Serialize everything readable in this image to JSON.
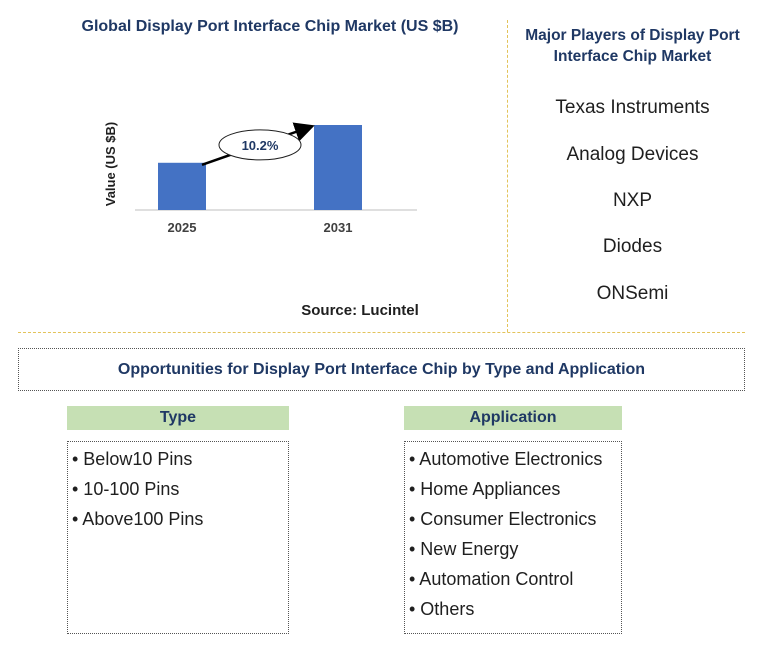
{
  "chart_title": "Global Display Port Interface Chip Market (US $B)",
  "chart_data": {
    "type": "bar",
    "categories": [
      "2025",
      "2031"
    ],
    "values": [
      1.0,
      1.8
    ],
    "ylabel": "Value (US $B)",
    "xlabel": "",
    "annotation": "10.2%",
    "bar_color": "#4472c4"
  },
  "source": "Source: Lucintel",
  "players": {
    "title": "Major Players of Display Port Interface Chip Market",
    "items": [
      "Texas Instruments",
      "Analog Devices",
      "NXP",
      "Diodes",
      "ONSemi"
    ]
  },
  "opportunities": {
    "title": "Opportunities for Display Port Interface Chip by Type and Application",
    "type": {
      "header": "Type",
      "items": [
        "• Below10 Pins",
        "• 10-100 Pins",
        "• Above100 Pins"
      ]
    },
    "application": {
      "header": "Application",
      "items": [
        "• Automotive Electronics",
        "• Home Appliances",
        "• Consumer Electronics",
        "• New Energy",
        "• Automation Control",
        "• Others"
      ]
    }
  }
}
